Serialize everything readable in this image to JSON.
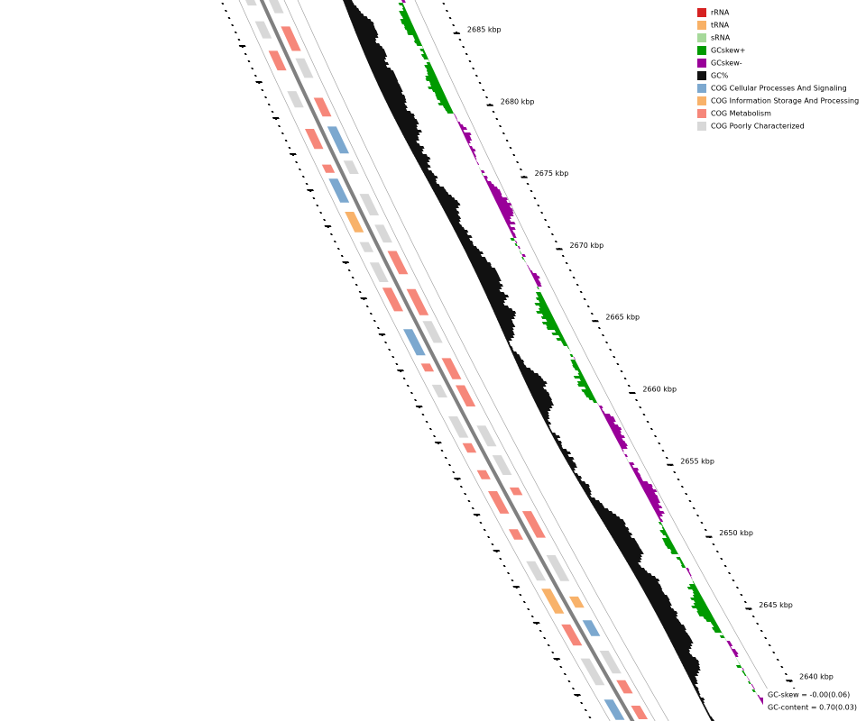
{
  "legend": [
    {
      "name": "rRNA",
      "color": "#d62222"
    },
    {
      "name": "tRNA",
      "color": "#f8b166"
    },
    {
      "name": "sRNA",
      "color": "#a6d99a"
    },
    {
      "name": "GCskew+",
      "color": "#009a00"
    },
    {
      "name": "GCskew-",
      "color": "#990099"
    },
    {
      "name": "GC%",
      "color": "#111111"
    },
    {
      "name": "COG Cellular Processes And Signaling",
      "color": "#7ca8cf"
    },
    {
      "name": "COG Information Storage And Processing",
      "color": "#f8b26a"
    },
    {
      "name": "COG Metabolism",
      "color": "#f6877a"
    },
    {
      "name": "COG Poorly Characterized",
      "color": "#d8d8d8"
    }
  ],
  "scale_labels": [
    "2685 kbp",
    "2680 kbp",
    "2675 kbp",
    "2670 kbp",
    "2665 kbp",
    "2660 kbp",
    "2655 kbp",
    "2650 kbp",
    "2645 kbp",
    "2640 kbp"
  ],
  "stats": {
    "gc_skew": "GC-skew = -0.00(0.06)",
    "gc_content": "GC-content = 0.70(0.03)"
  }
}
